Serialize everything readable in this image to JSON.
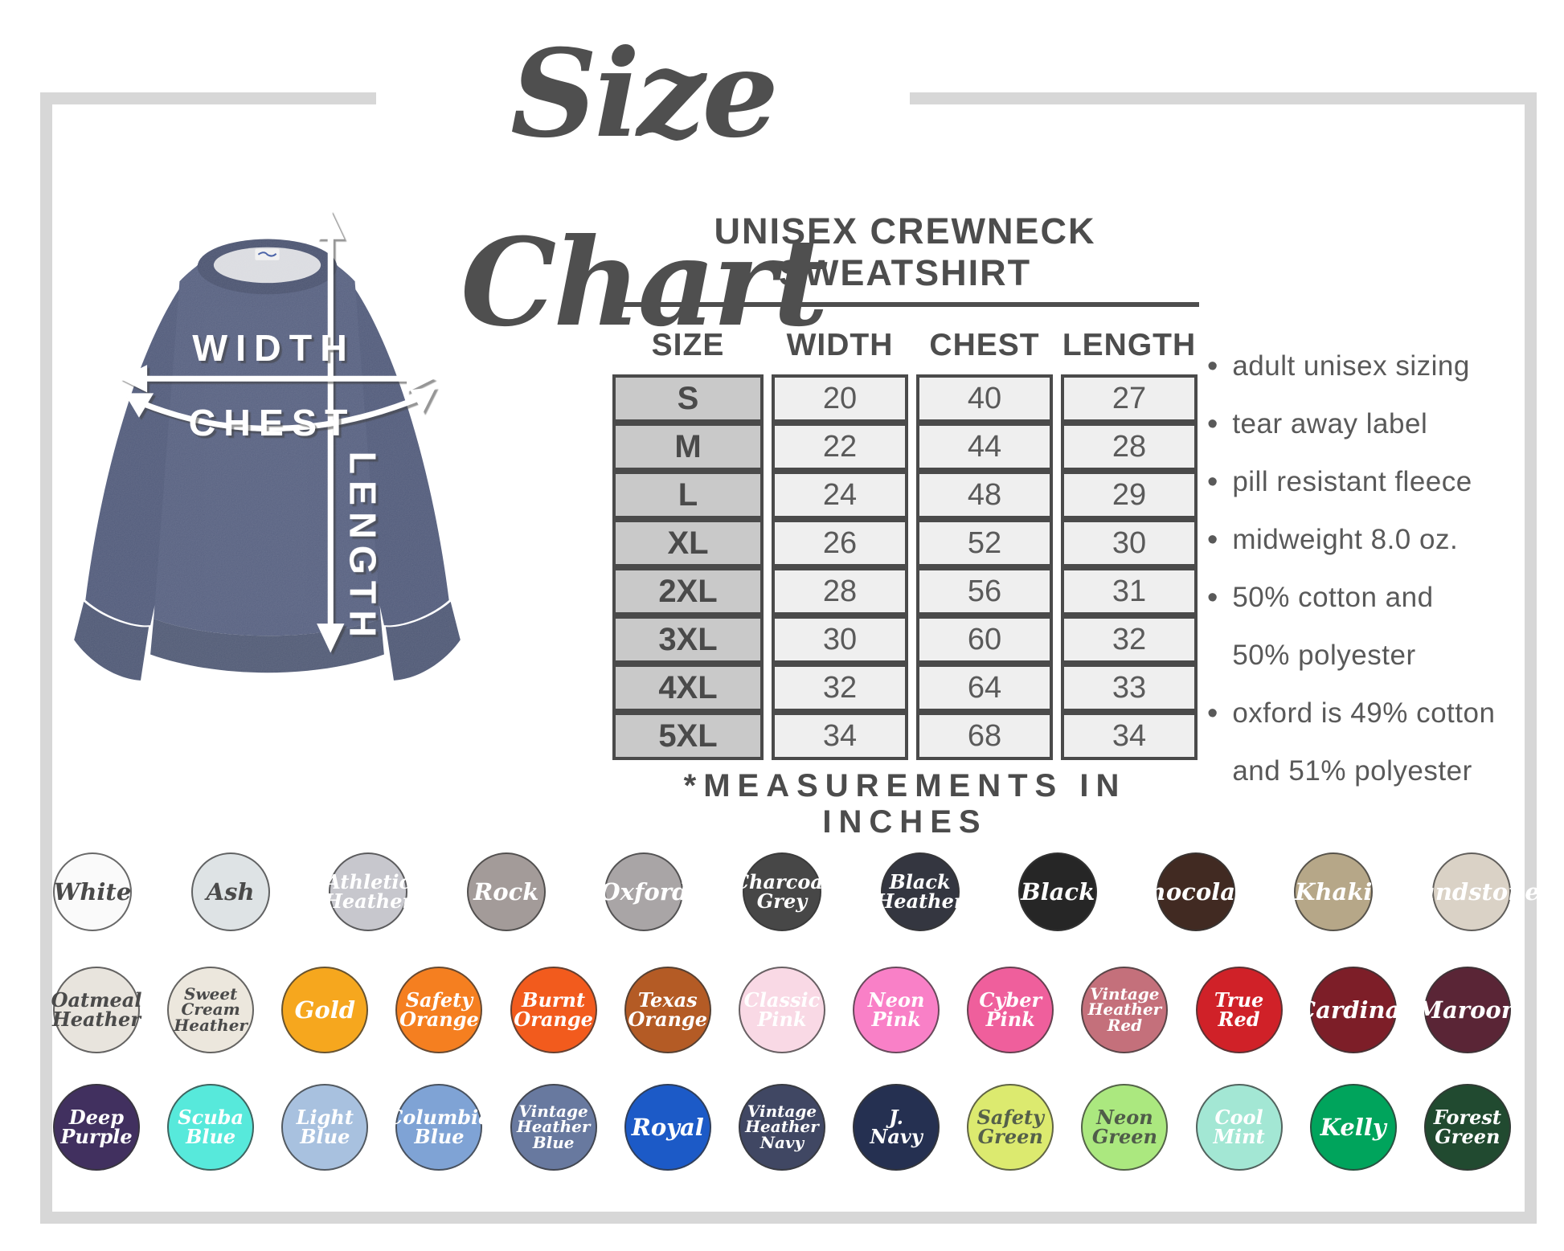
{
  "title": "Size Chart",
  "product": {
    "heading": "UNISEX CREWNECK SWEATSHIRT",
    "note": "*MEASUREMENTS IN INCHES"
  },
  "diagram": {
    "width_label": "WIDTH",
    "chest_label": "CHEST",
    "length_label": "LENGTH"
  },
  "size_table": {
    "columns": [
      "SIZE",
      "WIDTH",
      "CHEST",
      "LENGTH"
    ],
    "rows": [
      [
        "S",
        "20",
        "40",
        "27"
      ],
      [
        "M",
        "22",
        "44",
        "28"
      ],
      [
        "L",
        "24",
        "48",
        "29"
      ],
      [
        "XL",
        "26",
        "52",
        "30"
      ],
      [
        "2XL",
        "28",
        "56",
        "31"
      ],
      [
        "3XL",
        "30",
        "60",
        "32"
      ],
      [
        "4XL",
        "32",
        "64",
        "33"
      ],
      [
        "5XL",
        "34",
        "68",
        "34"
      ]
    ]
  },
  "features": [
    [
      "adult unisex sizing"
    ],
    [
      "tear away label"
    ],
    [
      "pill resistant fleece"
    ],
    [
      "midweight 8.0 oz."
    ],
    [
      "50% cotton and",
      "50% polyester"
    ],
    [
      "oxford is 49% cotton",
      "and 51% polyester"
    ]
  ],
  "colors": {
    "rows": [
      [
        {
          "name": "white",
          "label": "White",
          "bg": "#fafafa",
          "fg": "#4a4a4a"
        },
        {
          "name": "ash",
          "label": "Ash",
          "bg": "#dee3e5",
          "fg": "#4a4a4a"
        },
        {
          "name": "athletic-heather",
          "label": "Athletic\nHeather",
          "bg": "#c7c7cd",
          "fg": "#ffffff"
        },
        {
          "name": "rock",
          "label": "Rock",
          "bg": "#a39b99",
          "fg": "#ffffff"
        },
        {
          "name": "oxford",
          "label": "Oxford",
          "bg": "#a9a5a6",
          "fg": "#ffffff"
        },
        {
          "name": "charcoal-grey",
          "label": "Charcoal\nGrey",
          "bg": "#474747",
          "fg": "#ffffff"
        },
        {
          "name": "black-heather",
          "label": "Black\nHeather",
          "bg": "#343640",
          "fg": "#ffffff"
        },
        {
          "name": "black",
          "label": "Black",
          "bg": "#262626",
          "fg": "#ffffff"
        },
        {
          "name": "chocolate",
          "label": "Chocolate",
          "bg": "#412a22",
          "fg": "#ffffff"
        },
        {
          "name": "khaki",
          "label": "Khaki",
          "bg": "#b6a788",
          "fg": "#ffffff"
        },
        {
          "name": "sandstone",
          "label": "Sandstone",
          "bg": "#dad2c6",
          "fg": "#ffffff"
        }
      ],
      [
        {
          "name": "oatmeal-heather",
          "label": "Oatmeal\nHeather",
          "bg": "#e8e4dd",
          "fg": "#4a4a4a"
        },
        {
          "name": "sweet-cream-heather",
          "label": "Sweet\nCream\nHeather",
          "bg": "#ece7dd",
          "fg": "#4a4a4a"
        },
        {
          "name": "gold",
          "label": "Gold",
          "bg": "#f6a71e",
          "fg": "#ffffff"
        },
        {
          "name": "safety-orange",
          "label": "Safety\nOrange",
          "bg": "#f57f20",
          "fg": "#ffffff"
        },
        {
          "name": "burnt-orange",
          "label": "Burnt\nOrange",
          "bg": "#f25b1d",
          "fg": "#ffffff"
        },
        {
          "name": "texas-orange",
          "label": "Texas\nOrange",
          "bg": "#b45b25",
          "fg": "#ffffff"
        },
        {
          "name": "classic-pink",
          "label": "Classic\nPink",
          "bg": "#f9d9e5",
          "fg": "#ffffff"
        },
        {
          "name": "neon-pink",
          "label": "Neon\nPink",
          "bg": "#f980c7",
          "fg": "#ffffff"
        },
        {
          "name": "cyber-pink",
          "label": "Cyber\nPink",
          "bg": "#ef5f9c",
          "fg": "#ffffff"
        },
        {
          "name": "vintage-heather-red",
          "label": "Vintage\nHeather\nRed",
          "bg": "#c4707b",
          "fg": "#ffffff"
        },
        {
          "name": "true-red",
          "label": "True\nRed",
          "bg": "#d02128",
          "fg": "#ffffff"
        },
        {
          "name": "cardinal",
          "label": "Cardinal",
          "bg": "#7d1e28",
          "fg": "#ffffff"
        },
        {
          "name": "maroon",
          "label": "Maroon",
          "bg": "#5a2536",
          "fg": "#ffffff"
        }
      ],
      [
        {
          "name": "deep-purple",
          "label": "Deep\nPurple",
          "bg": "#41305f",
          "fg": "#ffffff"
        },
        {
          "name": "scuba-blue",
          "label": "Scuba\nBlue",
          "bg": "#57e9db",
          "fg": "#ffffff"
        },
        {
          "name": "light-blue",
          "label": "Light\nBlue",
          "bg": "#a8c1df",
          "fg": "#ffffff"
        },
        {
          "name": "columbia-blue",
          "label": "Columbia\nBlue",
          "bg": "#7fa3d5",
          "fg": "#ffffff"
        },
        {
          "name": "vintage-heather-blue",
          "label": "Vintage\nHeather\nBlue",
          "bg": "#68799f",
          "fg": "#ffffff"
        },
        {
          "name": "royal",
          "label": "Royal",
          "bg": "#1c5ac7",
          "fg": "#ffffff"
        },
        {
          "name": "vintage-heather-navy",
          "label": "Vintage\nHeather\nNavy",
          "bg": "#404763",
          "fg": "#ffffff"
        },
        {
          "name": "j-navy",
          "label": "J.\nNavy",
          "bg": "#253051",
          "fg": "#ffffff"
        },
        {
          "name": "safety-green",
          "label": "Safety\nGreen",
          "bg": "#dcea6f",
          "fg": "#55604a"
        },
        {
          "name": "neon-green",
          "label": "Neon\nGreen",
          "bg": "#abe87f",
          "fg": "#4f5c49"
        },
        {
          "name": "cool-mint",
          "label": "Cool\nMint",
          "bg": "#a3e7d4",
          "fg": "#ffffff"
        },
        {
          "name": "kelly",
          "label": "Kelly",
          "bg": "#00a45c",
          "fg": "#ffffff"
        },
        {
          "name": "forest-green",
          "label": "Forest\nGreen",
          "bg": "#214a30",
          "fg": "#ffffff"
        }
      ]
    ]
  },
  "chart_data": {
    "type": "table",
    "title": "Unisex Crewneck Sweatshirt size chart (measurements in inches)",
    "columns": [
      "SIZE",
      "WIDTH",
      "CHEST",
      "LENGTH"
    ],
    "rows": [
      [
        "S",
        20,
        40,
        27
      ],
      [
        "M",
        22,
        44,
        28
      ],
      [
        "L",
        24,
        48,
        29
      ],
      [
        "XL",
        26,
        52,
        30
      ],
      [
        "2XL",
        28,
        56,
        31
      ],
      [
        "3XL",
        30,
        60,
        32
      ],
      [
        "4XL",
        32,
        64,
        33
      ],
      [
        "5XL",
        34,
        68,
        34
      ]
    ]
  },
  "palette": {
    "frame": "#d7d7d7",
    "ink": "#4d4d4d",
    "size_col_bg": "#c9c9c9",
    "cell_bg": "#efefef",
    "sweatshirt_navy": "#505a7b"
  }
}
